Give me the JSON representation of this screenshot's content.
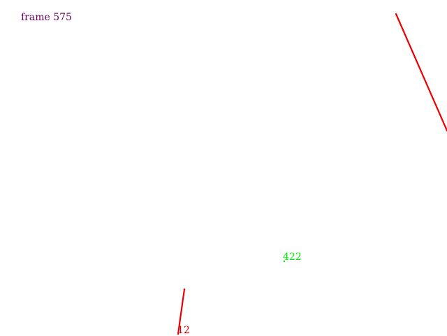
{
  "frame": {
    "label": "frame 575",
    "color": "#660066"
  },
  "annotations": [
    {
      "text": "422",
      "color": "#00ee00"
    },
    {
      "text": "12",
      "color": "#dd0000"
    }
  ],
  "lines": {
    "color": "#ee0000"
  }
}
